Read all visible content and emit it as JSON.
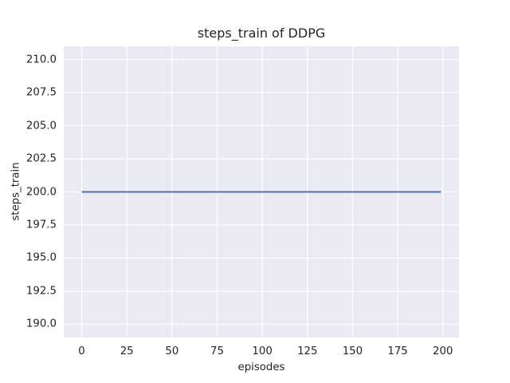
{
  "figure": {
    "background": "#ffffff",
    "text_color": "#262626"
  },
  "chart_data": {
    "type": "line",
    "title": "steps_train of DDPG",
    "xlabel": "episodes",
    "ylabel": "steps_train",
    "series": [
      {
        "name": "steps_train",
        "color": "#4C72B0",
        "linewidth": 2,
        "x": [
          0,
          199
        ],
        "y": [
          200,
          200
        ],
        "note_constant_value": 200
      }
    ],
    "xlim": [
      -9.95,
      208.95
    ],
    "ylim": [
      189,
      211
    ],
    "xticks": [
      0,
      25,
      50,
      75,
      100,
      125,
      150,
      175,
      200
    ],
    "xtick_labels": [
      "0",
      "25",
      "50",
      "75",
      "100",
      "125",
      "150",
      "175",
      "200"
    ],
    "yticks": [
      190.0,
      192.5,
      195.0,
      197.5,
      200.0,
      202.5,
      205.0,
      207.5,
      210.0
    ],
    "ytick_labels": [
      "190.0",
      "192.5",
      "195.0",
      "197.5",
      "200.0",
      "202.5",
      "205.0",
      "207.5",
      "210.0"
    ],
    "grid": true,
    "grid_color": "#ffffff",
    "plot_background": "#eaeaf2",
    "legend_position": "none"
  }
}
